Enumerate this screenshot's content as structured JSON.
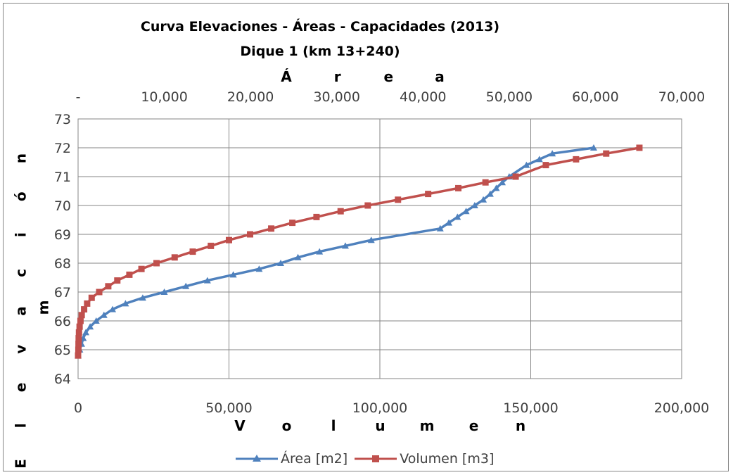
{
  "chart_data": {
    "type": "line",
    "title": "Curva Elevaciones - Áreas - Capacidades (2013)",
    "subtitle": "Dique 1 (km 13+240)",
    "xlabel_bottom": "Volumen",
    "xlabel_top": "Área",
    "ylabel": "Elevación",
    "ylabel_unit": "m",
    "xlim_bottom": [
      0,
      200000
    ],
    "xlim_top": [
      0,
      70000
    ],
    "ylim": [
      64,
      73
    ],
    "yticks": [
      "64",
      "65",
      "66",
      "67",
      "68",
      "69",
      "70",
      "71",
      "72",
      "73"
    ],
    "xticks_bottom": [
      "0",
      "50,000",
      "100,000",
      "150,000",
      "200,000"
    ],
    "xticks_top": [
      "-",
      "10,000",
      "20,000",
      "30,000",
      "40,000",
      "50,000",
      "60,000",
      "70,000"
    ],
    "grid": true,
    "legend_position": "bottom",
    "series": [
      {
        "name": "Área [m2]",
        "axis": "top",
        "color": "#4F81BD",
        "marker": "triangle",
        "points": [
          [
            0,
            64.8
          ],
          [
            200,
            65.0
          ],
          [
            400,
            65.2
          ],
          [
            600,
            65.4
          ],
          [
            900,
            65.6
          ],
          [
            1400,
            65.8
          ],
          [
            2100,
            66.0
          ],
          [
            3000,
            66.2
          ],
          [
            4000,
            66.4
          ],
          [
            5500,
            66.6
          ],
          [
            7500,
            66.8
          ],
          [
            10000,
            67.0
          ],
          [
            12500,
            67.2
          ],
          [
            15000,
            67.4
          ],
          [
            18000,
            67.6
          ],
          [
            21000,
            67.8
          ],
          [
            23500,
            68.0
          ],
          [
            25500,
            68.2
          ],
          [
            28000,
            68.4
          ],
          [
            31000,
            68.6
          ],
          [
            34000,
            68.8
          ],
          [
            42000,
            69.2
          ],
          [
            43000,
            69.4
          ],
          [
            44000,
            69.6
          ],
          [
            45000,
            69.8
          ],
          [
            46000,
            70.0
          ],
          [
            47000,
            70.2
          ],
          [
            47800,
            70.4
          ],
          [
            48500,
            70.6
          ],
          [
            49200,
            70.8
          ],
          [
            50000,
            71.0
          ],
          [
            52000,
            71.4
          ],
          [
            53500,
            71.6
          ],
          [
            55000,
            71.8
          ],
          [
            59800,
            72.0
          ]
        ]
      },
      {
        "name": "Volumen [m3]",
        "axis": "bottom",
        "color": "#C0504D",
        "marker": "square",
        "points": [
          [
            0,
            64.8
          ],
          [
            100,
            65.0
          ],
          [
            150,
            65.2
          ],
          [
            200,
            65.4
          ],
          [
            300,
            65.6
          ],
          [
            500,
            65.8
          ],
          [
            800,
            66.0
          ],
          [
            1200,
            66.2
          ],
          [
            2000,
            66.4
          ],
          [
            3000,
            66.6
          ],
          [
            4500,
            66.8
          ],
          [
            7000,
            67.0
          ],
          [
            10000,
            67.2
          ],
          [
            13000,
            67.4
          ],
          [
            17000,
            67.6
          ],
          [
            21000,
            67.8
          ],
          [
            26000,
            68.0
          ],
          [
            32000,
            68.2
          ],
          [
            38000,
            68.4
          ],
          [
            44000,
            68.6
          ],
          [
            50000,
            68.8
          ],
          [
            57000,
            69.0
          ],
          [
            64000,
            69.2
          ],
          [
            71000,
            69.4
          ],
          [
            79000,
            69.6
          ],
          [
            87000,
            69.8
          ],
          [
            96000,
            70.0
          ],
          [
            106000,
            70.2
          ],
          [
            116000,
            70.4
          ],
          [
            126000,
            70.6
          ],
          [
            135000,
            70.8
          ],
          [
            145000,
            71.0
          ],
          [
            155000,
            71.4
          ],
          [
            165000,
            71.6
          ],
          [
            175000,
            71.8
          ],
          [
            186000,
            72.0
          ]
        ]
      }
    ]
  }
}
